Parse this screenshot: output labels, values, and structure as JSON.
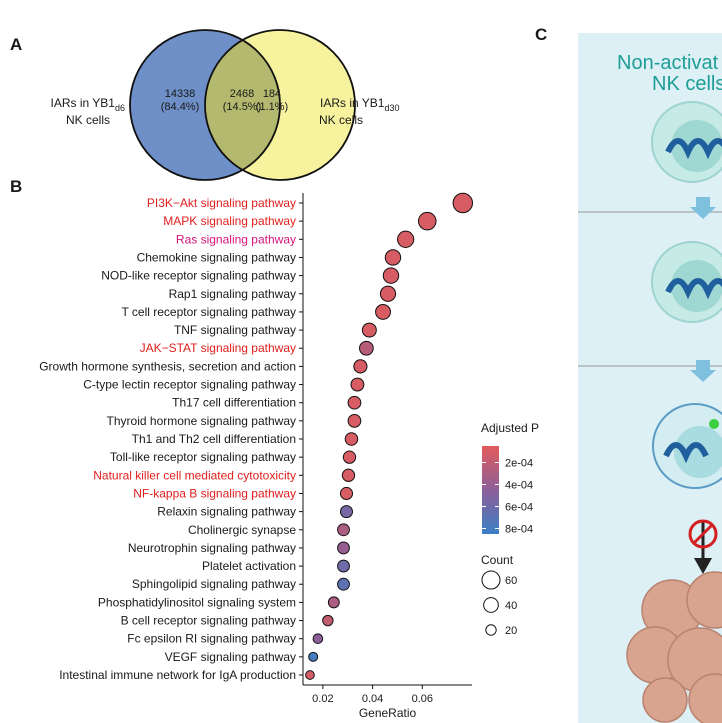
{
  "panel_labels": [
    "A",
    "B",
    "C"
  ],
  "chart_data": [
    {
      "type": "venn",
      "sets": [
        {
          "name": "IARs in YB1",
          "subscript": "d6",
          "suffix": "NK cells",
          "color": "#6e8fc7"
        },
        {
          "name": "IARs in YB1",
          "subscript": "d30",
          "suffix": "NK cells",
          "color": "#f6f29d"
        }
      ],
      "overlap_color": "#b3b96e",
      "counts": [
        14338,
        2468,
        184
      ],
      "percent_labels": [
        "(84.4%)",
        "(14.5%)",
        "(1.1%)"
      ]
    },
    {
      "type": "dot",
      "categories": [
        "PI3K−Akt signaling pathway",
        "MAPK signaling pathway",
        "Ras signaling pathway",
        "Chemokine signaling pathway",
        "NOD-like receptor signaling pathway",
        "Rap1 signaling pathway",
        "T cell receptor signaling pathway",
        "TNF signaling pathway",
        "JAK−STAT signaling pathway",
        "Growth hormone synthesis, secretion and action",
        "C-type lectin receptor signaling pathway",
        "Th17 cell differentiation",
        "Thyroid hormone signaling pathway",
        "Th1 and Th2 cell differentiation",
        "Toll-like receptor signaling pathway",
        "Natural killer cell mediated cytotoxicity",
        "NF-kappa B signaling pathway",
        "Relaxin signaling pathway",
        "Cholinergic synapse",
        "Neurotrophin signaling pathway",
        "Platelet activation",
        "Sphingolipid signaling pathway",
        "Phosphatidylinositol signaling system",
        "B cell receptor signaling pathway",
        "Fc epsilon RI signaling pathway",
        "VEGF signaling pathway",
        "Intestinal immune network for IgA production"
      ],
      "label_colors": [
        "#e0201e",
        "#e0201e",
        "#d4147a",
        "#1a1a1a",
        "#1a1a1a",
        "#1a1a1a",
        "#1a1a1a",
        "#1a1a1a",
        "#e0201e",
        "#1a1a1a",
        "#1a1a1a",
        "#1a1a1a",
        "#1a1a1a",
        "#1a1a1a",
        "#1a1a1a",
        "#e0201e",
        "#e0201e",
        "#1a1a1a",
        "#1a1a1a",
        "#1a1a1a",
        "#1a1a1a",
        "#1a1a1a",
        "#1a1a1a",
        "#1a1a1a",
        "#1a1a1a",
        "#1a1a1a",
        "#1a1a1a"
      ],
      "values": [
        0.0763,
        0.062,
        0.0533,
        0.0482,
        0.0474,
        0.0462,
        0.0442,
        0.0387,
        0.0375,
        0.0351,
        0.0339,
        0.0327,
        0.0327,
        0.0315,
        0.0307,
        0.0303,
        0.0295,
        0.0295,
        0.0283,
        0.0283,
        0.0283,
        0.0283,
        0.0244,
        0.022,
        0.018,
        0.0161,
        0.0148
      ],
      "sizes": [
        70,
        57,
        49,
        44,
        44,
        43,
        41,
        36,
        35,
        32,
        31,
        30,
        30,
        29,
        28,
        28,
        27,
        27,
        26,
        26,
        26,
        26,
        22,
        20,
        17,
        15,
        14
      ],
      "color_values": [
        0.0001,
        0.0001,
        0.0001,
        0.0001,
        0.0001,
        0.0001,
        0.0001,
        0.0001,
        0.00025,
        0.0001,
        0.0001,
        0.0001,
        0.0001,
        0.0001,
        0.0001,
        0.0001,
        0.0001,
        0.00055,
        0.0003,
        0.0004,
        0.0006,
        0.00068,
        0.0003,
        0.0002,
        0.00045,
        0.0008,
        0.00012
      ],
      "xlabel": "GeneRatio",
      "xlim": [
        0.012,
        0.08
      ],
      "xticks": [
        0.02,
        0.04,
        0.06
      ],
      "color_label": "Adjusted P",
      "color_lim": [
        5e-05,
        0.00085
      ],
      "color_ticks": [
        {
          "value": 0.0002,
          "label": "2e-04"
        },
        {
          "value": 0.0004,
          "label": "4e-04"
        },
        {
          "value": 0.0006,
          "label": "6e-04"
        },
        {
          "value": 0.0008,
          "label": "8e-04"
        }
      ],
      "color_range": [
        "#e25b5b",
        "#8c5f99",
        "#3b80c4"
      ],
      "size_label": "Count",
      "size_ticks": [
        60,
        40,
        20
      ]
    }
  ],
  "diagram": {
    "title_lines": [
      "Non-activat",
      "NK cells"
    ]
  }
}
